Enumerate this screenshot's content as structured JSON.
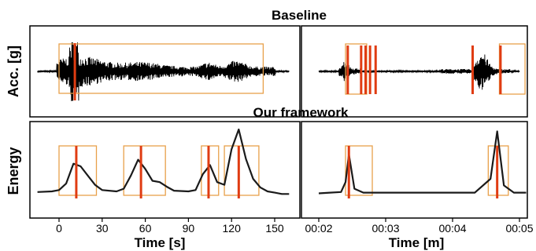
{
  "chart_data": [
    {
      "type": "line",
      "title": "Baseline",
      "ylabel": "Acc. [g]",
      "xlabel": "",
      "xlim": [
        -15,
        160
      ],
      "x_unit": "s",
      "signal": "acceleration",
      "detection_boxes": [
        [
          0,
          142
        ]
      ],
      "event_markers": [
        11
      ],
      "colors": {
        "trace": "#000000",
        "box": "#e8a04a",
        "marker": "#e03c12"
      }
    },
    {
      "type": "line",
      "title": "",
      "ylabel": "",
      "xlabel": "",
      "xlim": [
        "00:02",
        "00:05"
      ],
      "x_unit": "m",
      "signal": "acceleration",
      "detection_boxes": [
        [
          "00:02:24",
          "00:02:43"
        ],
        [
          "00:04:42",
          "00:05:05"
        ]
      ],
      "event_markers": [
        "00:02:26",
        "00:02:38",
        "00:02:42",
        "00:02:46",
        "00:02:51",
        "00:04:18",
        "00:04:43"
      ],
      "colors": {
        "trace": "#000000",
        "box": "#e8a04a",
        "marker": "#e03c12"
      }
    },
    {
      "type": "line",
      "title": "Our framework",
      "ylabel": "Energy",
      "xlabel": "Time [s]",
      "x_ticks": [
        0,
        30,
        60,
        90,
        120,
        150
      ],
      "xlim": [
        -15,
        160
      ],
      "detection_boxes": [
        [
          0,
          26
        ],
        [
          45,
          74
        ],
        [
          99,
          111
        ],
        [
          115,
          139
        ]
      ],
      "event_markers": [
        12,
        57,
        104,
        125
      ],
      "series": [
        {
          "x": [
            -15,
            -5,
            0,
            5,
            10,
            15,
            20,
            25,
            30,
            40,
            45,
            50,
            55,
            60,
            65,
            70,
            75,
            80,
            90,
            95,
            100,
            105,
            110,
            115,
            120,
            125,
            130,
            135,
            140,
            145,
            150,
            155,
            160
          ],
          "y": [
            0.05,
            0.06,
            0.08,
            0.18,
            0.48,
            0.44,
            0.3,
            0.16,
            0.08,
            0.06,
            0.1,
            0.3,
            0.54,
            0.4,
            0.22,
            0.2,
            0.13,
            0.07,
            0.06,
            0.08,
            0.32,
            0.46,
            0.2,
            0.16,
            0.7,
            1.0,
            0.55,
            0.25,
            0.12,
            0.06,
            0.04,
            0.02,
            0.02
          ]
        }
      ],
      "colors": {
        "trace": "#1a1a1a",
        "box": "#e8a04a",
        "marker": "#e03c12"
      }
    },
    {
      "type": "line",
      "title": "",
      "ylabel": "",
      "xlabel": "Time [m]",
      "x_ticks": [
        "00:02",
        "00:03",
        "00:04",
        "00:05"
      ],
      "xlim": [
        "00:02",
        "00:05"
      ],
      "detection_boxes": [
        [
          "00:02:24",
          "00:02:48"
        ],
        [
          "00:04:32",
          "00:04:50"
        ]
      ],
      "event_markers": [
        "00:02:27",
        "00:04:40"
      ],
      "series": [
        {
          "x": [
            "00:02",
            "00:02:10",
            "00:02:20",
            "00:02:24",
            "00:02:27",
            "00:02:32",
            "00:02:40",
            "00:03",
            "00:03:30",
            "00:04",
            "00:04:20",
            "00:04:34",
            "00:04:40",
            "00:04:46",
            "00:04:55",
            "00:05",
            "00:05:06"
          ],
          "y": [
            0.03,
            0.04,
            0.05,
            0.2,
            0.62,
            0.1,
            0.04,
            0.04,
            0.04,
            0.04,
            0.04,
            0.25,
            0.97,
            0.15,
            0.04,
            0.04,
            0.04
          ]
        }
      ],
      "colors": {
        "trace": "#1a1a1a",
        "box": "#e8a04a",
        "marker": "#e03c12"
      }
    }
  ]
}
